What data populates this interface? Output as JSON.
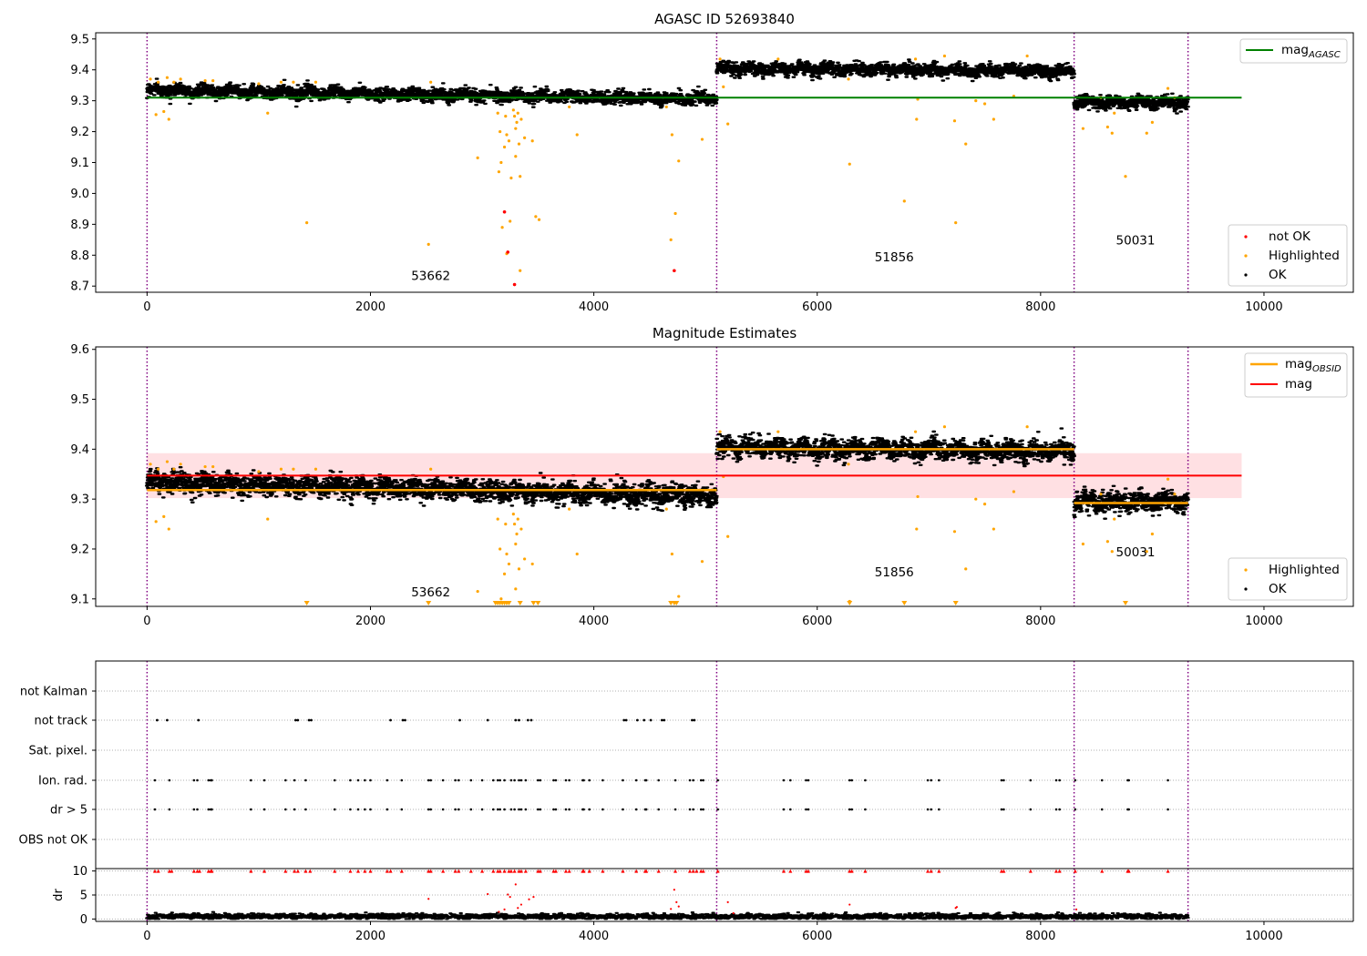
{
  "chart_data": [
    {
      "panel": "top",
      "type": "scatter",
      "title": "AGASC ID 52693840",
      "xlim": [
        -460,
        10800
      ],
      "ylim": [
        8.68,
        9.52
      ],
      "xticks": [
        0,
        2000,
        4000,
        6000,
        8000,
        10000
      ],
      "yticks": [
        8.7,
        8.8,
        8.9,
        9.0,
        9.1,
        9.2,
        9.3,
        9.4,
        9.5
      ],
      "obsid_boundaries": [
        0,
        5100,
        8300,
        9320
      ],
      "segments": [
        {
          "obsid": "53662",
          "x_start": 0,
          "x_end": 5100,
          "mean_start": 9.335,
          "mean_end": 9.305,
          "label_pos": [
            2540,
            8.72
          ]
        },
        {
          "obsid": "51856",
          "x_start": 5100,
          "x_end": 8300,
          "mean_start": 9.405,
          "mean_end": 9.395,
          "label_pos": [
            6690,
            8.78
          ]
        },
        {
          "obsid": "50031",
          "x_start": 8300,
          "x_end": 9320,
          "mean_start": 9.295,
          "mean_end": 9.295,
          "label_pos": [
            8850,
            8.835
          ]
        }
      ],
      "mag_agasc": {
        "value": 9.31,
        "x_range": [
          0,
          9800
        ]
      },
      "highlighted_points": [
        [
          30,
          9.37
        ],
        [
          80,
          9.255
        ],
        [
          100,
          9.36
        ],
        [
          150,
          9.265
        ],
        [
          180,
          9.375
        ],
        [
          195,
          9.24
        ],
        [
          240,
          9.36
        ],
        [
          300,
          9.37
        ],
        [
          520,
          9.365
        ],
        [
          590,
          9.365
        ],
        [
          1000,
          9.355
        ],
        [
          1080,
          9.26
        ],
        [
          1200,
          9.36
        ],
        [
          1310,
          9.36
        ],
        [
          1430,
          8.905
        ],
        [
          1510,
          9.36
        ],
        [
          2520,
          8.835
        ],
        [
          2540,
          9.36
        ],
        [
          2960,
          9.115
        ],
        [
          3140,
          9.26
        ],
        [
          3150,
          9.07
        ],
        [
          3160,
          9.2
        ],
        [
          3170,
          9.1
        ],
        [
          3180,
          8.89
        ],
        [
          3200,
          9.15
        ],
        [
          3210,
          9.25
        ],
        [
          3220,
          9.19
        ],
        [
          3220,
          8.805
        ],
        [
          3240,
          9.17
        ],
        [
          3250,
          8.91
        ],
        [
          3260,
          9.05
        ],
        [
          3280,
          9.27
        ],
        [
          3290,
          9.25
        ],
        [
          3300,
          9.21
        ],
        [
          3300,
          9.12
        ],
        [
          3310,
          9.23
        ],
        [
          3320,
          9.26
        ],
        [
          3330,
          9.16
        ],
        [
          3340,
          8.75
        ],
        [
          3340,
          9.055
        ],
        [
          3350,
          9.24
        ],
        [
          3380,
          9.18
        ],
        [
          3450,
          9.17
        ],
        [
          3480,
          8.925
        ],
        [
          3510,
          8.915
        ],
        [
          3780,
          9.28
        ],
        [
          3850,
          9.19
        ],
        [
          4650,
          9.28
        ],
        [
          4690,
          8.85
        ],
        [
          4700,
          9.19
        ],
        [
          4730,
          8.935
        ],
        [
          4760,
          9.105
        ],
        [
          4970,
          9.175
        ],
        [
          5130,
          9.435
        ],
        [
          5160,
          9.345
        ],
        [
          5200,
          9.225
        ],
        [
          5650,
          9.435
        ],
        [
          6280,
          9.37
        ],
        [
          6290,
          9.095
        ],
        [
          6780,
          8.975
        ],
        [
          6880,
          9.435
        ],
        [
          6900,
          9.305
        ],
        [
          6890,
          9.24
        ],
        [
          7140,
          9.445
        ],
        [
          7230,
          9.235
        ],
        [
          7240,
          8.905
        ],
        [
          7330,
          9.16
        ],
        [
          7420,
          9.3
        ],
        [
          7500,
          9.29
        ],
        [
          7580,
          9.24
        ],
        [
          7760,
          9.315
        ],
        [
          7880,
          9.445
        ],
        [
          8380,
          9.21
        ],
        [
          8540,
          9.31
        ],
        [
          8600,
          9.215
        ],
        [
          8640,
          9.195
        ],
        [
          8660,
          9.26
        ],
        [
          8760,
          9.055
        ],
        [
          8950,
          9.195
        ],
        [
          9000,
          9.23
        ],
        [
          9140,
          9.34
        ],
        [
          9200,
          9.31
        ]
      ],
      "not_ok_points": [
        [
          3200,
          8.94
        ],
        [
          3230,
          8.81
        ],
        [
          3290,
          8.705
        ],
        [
          4720,
          8.75
        ]
      ],
      "legend": {
        "lines": [
          "mag"
        ],
        "line_subscripts": [
          "AGASC"
        ],
        "markers": [
          "not OK",
          "Highlighted",
          "OK"
        ]
      },
      "colors": {
        "ok": "#000000",
        "highlighted": "#ffa500",
        "not_ok": "#ff0000",
        "mag_agasc": "#008000",
        "boundary": "#800080"
      }
    },
    {
      "panel": "middle",
      "type": "scatter",
      "title": "Magnitude Estimates",
      "xlim": [
        -460,
        10800
      ],
      "ylim": [
        9.085,
        9.605
      ],
      "xticks": [
        0,
        2000,
        4000,
        6000,
        8000,
        10000
      ],
      "yticks": [
        9.1,
        9.2,
        9.3,
        9.4,
        9.5,
        9.6
      ],
      "obsid_boundaries": [
        0,
        5100,
        8300,
        9320
      ],
      "mag": {
        "value": 9.347,
        "band": [
          9.302,
          9.392
        ],
        "x_range": [
          0,
          9800
        ]
      },
      "mag_obsid": [
        {
          "x_range": [
            0,
            5100
          ],
          "value": 9.318
        },
        {
          "x_range": [
            5100,
            8300
          ],
          "value": 9.4
        },
        {
          "x_range": [
            8300,
            9320
          ],
          "value": 9.292
        }
      ],
      "segment_labels": [
        {
          "text": "53662",
          "pos": [
            2540,
            9.105
          ]
        },
        {
          "text": "51856",
          "pos": [
            6690,
            9.145
          ]
        },
        {
          "text": "50031",
          "pos": [
            8850,
            9.185
          ]
        }
      ],
      "highlighted_points": [
        [
          30,
          9.37
        ],
        [
          80,
          9.255
        ],
        [
          100,
          9.36
        ],
        [
          150,
          9.265
        ],
        [
          180,
          9.375
        ],
        [
          195,
          9.24
        ],
        [
          240,
          9.36
        ],
        [
          300,
          9.37
        ],
        [
          520,
          9.365
        ],
        [
          590,
          9.365
        ],
        [
          1000,
          9.355
        ],
        [
          1080,
          9.26
        ],
        [
          1200,
          9.36
        ],
        [
          1310,
          9.36
        ],
        [
          1510,
          9.36
        ],
        [
          2540,
          9.36
        ],
        [
          2960,
          9.115
        ],
        [
          3140,
          9.26
        ],
        [
          3160,
          9.2
        ],
        [
          3170,
          9.1
        ],
        [
          3200,
          9.15
        ],
        [
          3210,
          9.25
        ],
        [
          3220,
          9.19
        ],
        [
          3240,
          9.17
        ],
        [
          3280,
          9.27
        ],
        [
          3290,
          9.25
        ],
        [
          3300,
          9.21
        ],
        [
          3300,
          9.12
        ],
        [
          3310,
          9.23
        ],
        [
          3320,
          9.26
        ],
        [
          3330,
          9.16
        ],
        [
          3350,
          9.24
        ],
        [
          3380,
          9.18
        ],
        [
          3450,
          9.17
        ],
        [
          3780,
          9.28
        ],
        [
          3850,
          9.19
        ],
        [
          4650,
          9.28
        ],
        [
          4700,
          9.19
        ],
        [
          4760,
          9.105
        ],
        [
          4970,
          9.175
        ],
        [
          5130,
          9.435
        ],
        [
          5160,
          9.345
        ],
        [
          5200,
          9.225
        ],
        [
          5650,
          9.435
        ],
        [
          6280,
          9.37
        ],
        [
          6290,
          9.095
        ],
        [
          6880,
          9.435
        ],
        [
          6900,
          9.305
        ],
        [
          6890,
          9.24
        ],
        [
          7140,
          9.445
        ],
        [
          7230,
          9.235
        ],
        [
          7330,
          9.16
        ],
        [
          7420,
          9.3
        ],
        [
          7500,
          9.29
        ],
        [
          7580,
          9.24
        ],
        [
          7760,
          9.315
        ],
        [
          7880,
          9.445
        ],
        [
          8380,
          9.21
        ],
        [
          8540,
          9.31
        ],
        [
          8600,
          9.215
        ],
        [
          8640,
          9.195
        ],
        [
          8660,
          9.26
        ],
        [
          8950,
          9.195
        ],
        [
          9000,
          9.23
        ],
        [
          9140,
          9.34
        ],
        [
          9200,
          9.31
        ]
      ],
      "clipped_markers_x": [
        1430,
        2520,
        3120,
        3140,
        3160,
        3180,
        3200,
        3220,
        3240,
        3340,
        3460,
        3500,
        4690,
        4720,
        4740,
        6290,
        6780,
        7240,
        8760
      ],
      "legend": {
        "lines": [
          "mag",
          "mag"
        ],
        "line_subscripts": [
          "OBSID",
          ""
        ],
        "markers": [
          "Highlighted",
          "OK"
        ]
      },
      "colors": {
        "ok": "#000000",
        "highlighted": "#ffa500",
        "mag": "#ff0000",
        "mag_band": "#ffe0e3",
        "mag_obsid": "#ffa500",
        "boundary": "#800080"
      }
    },
    {
      "panel": "flags",
      "type": "scatter",
      "xlim": [
        -460,
        10800
      ],
      "yticklabels": [
        "not Kalman",
        "not track",
        "Sat. pixel.",
        "Ion. rad.",
        "dr > 5",
        "OBS not OK"
      ],
      "not_track_x": [
        90,
        180,
        460,
        1330,
        1350,
        1450,
        1470,
        2180,
        2290,
        2310,
        2800,
        3050,
        3300,
        3330,
        3410,
        3440,
        4270,
        4290,
        4390,
        4450,
        4510,
        4610,
        4630,
        4880,
        4900
      ],
      "flag_x": [
        70,
        200,
        420,
        450,
        550,
        570,
        580,
        930,
        1050,
        1240,
        1320,
        1420,
        1680,
        1820,
        1890,
        1950,
        2000,
        2150,
        2280,
        2520,
        2540,
        2650,
        2760,
        2790,
        2900,
        3000,
        3100,
        3140,
        3160,
        3200,
        3260,
        3290,
        3330,
        3350,
        3390,
        3500,
        3520,
        3640,
        3660,
        3750,
        3780,
        3900,
        3910,
        3960,
        4080,
        4260,
        4380,
        4460,
        4470,
        4580,
        4730,
        4860,
        4890,
        4960,
        4980,
        5110,
        5700,
        5760,
        5900,
        5920,
        6290,
        6310,
        6430,
        6990,
        7020,
        7090,
        7650,
        7670,
        7910,
        8140,
        8170,
        8310,
        8550,
        8780,
        8790,
        9140
      ],
      "colors": {
        "points": "#000000",
        "boundary": "#800080",
        "grid": "#b0b0b0"
      }
    },
    {
      "panel": "dr",
      "type": "scatter",
      "ylabel": "dr",
      "xlim": [
        -460,
        10800
      ],
      "ylim": [
        -0.5,
        10.5
      ],
      "xticks": [
        0,
        2000,
        4000,
        6000,
        8000,
        10000
      ],
      "yticks": [
        0,
        5,
        10
      ],
      "capped_markers_x": [
        70,
        100,
        200,
        220,
        420,
        450,
        470,
        550,
        570,
        580,
        930,
        1050,
        1240,
        1320,
        1350,
        1420,
        1460,
        1680,
        1820,
        1890,
        1950,
        2000,
        2150,
        2180,
        2280,
        2520,
        2540,
        2650,
        2760,
        2790,
        2900,
        3000,
        3100,
        3140,
        3160,
        3200,
        3240,
        3260,
        3290,
        3330,
        3350,
        3390,
        3500,
        3520,
        3640,
        3660,
        3750,
        3780,
        3900,
        3910,
        3960,
        4080,
        4260,
        4380,
        4460,
        4470,
        4580,
        4730,
        4860,
        4890,
        4920,
        4960,
        4980,
        5110,
        5700,
        5760,
        5900,
        5920,
        6290,
        6310,
        6430,
        6990,
        7020,
        7090,
        7650,
        7670,
        7910,
        8140,
        8170,
        8310,
        8550,
        8780,
        8790,
        9140
      ],
      "outlier_points": [
        [
          2520,
          4.2
        ],
        [
          3050,
          5.2
        ],
        [
          3150,
          1.5
        ],
        [
          3200,
          2.0
        ],
        [
          3230,
          5.1
        ],
        [
          3250,
          4.6
        ],
        [
          3300,
          7.2
        ],
        [
          3320,
          2.3
        ],
        [
          3350,
          3.0
        ],
        [
          3420,
          4.1
        ],
        [
          3460,
          4.6
        ],
        [
          4690,
          2.1
        ],
        [
          4720,
          6.1
        ],
        [
          4740,
          3.5
        ],
        [
          4760,
          2.6
        ],
        [
          5200,
          3.5
        ],
        [
          5250,
          1.2
        ],
        [
          6290,
          3.0
        ],
        [
          7240,
          2.3
        ],
        [
          7250,
          2.5
        ],
        [
          8320,
          2.0
        ]
      ],
      "colors": {
        "points": "#000000",
        "capped": "#ff0000",
        "outliers": "#ff0000",
        "boundary": "#800080",
        "grid": "#b0b0b0"
      }
    }
  ]
}
